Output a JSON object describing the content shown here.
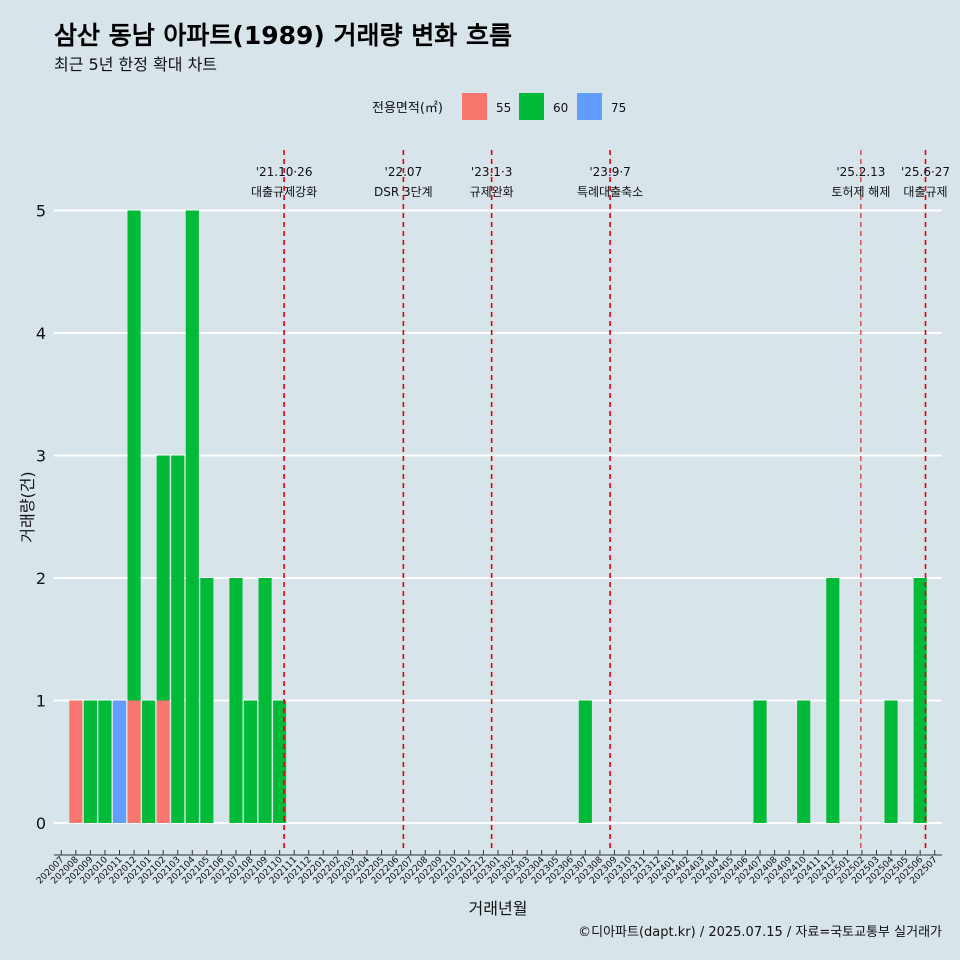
{
  "title": "삼산 동남 아파트(1989) 거래량 변화 흐름",
  "subtitle": "최근 5년 한정 확대 차트",
  "caption": "©디아파트(dapt.kr) / 2025.07.15 / 자료=국토교통부 실거래가",
  "colors": {
    "55": "#F8766D",
    "60": "#00BA38",
    "75": "#619CFF",
    "background": "#d7e4ea",
    "grid": "#ffffff",
    "event_line": "#e0000f"
  },
  "chart_data": {
    "type": "bar",
    "stacked": true,
    "xlabel": "거래년월",
    "ylabel": "거래량(건)",
    "ylim": [
      0,
      5
    ],
    "yticks": [
      0,
      1,
      2,
      3,
      4,
      5
    ],
    "legend": {
      "title": "전용면적(㎡)",
      "position": "top",
      "entries": [
        "55",
        "60",
        "75"
      ]
    },
    "categories": [
      "202007",
      "202008",
      "202009",
      "202010",
      "202011",
      "202012",
      "202101",
      "202102",
      "202103",
      "202104",
      "202105",
      "202106",
      "202107",
      "202108",
      "202109",
      "202110",
      "202111",
      "202112",
      "202201",
      "202202",
      "202203",
      "202204",
      "202205",
      "202206",
      "202207",
      "202208",
      "202209",
      "202210",
      "202211",
      "202212",
      "202301",
      "202302",
      "202303",
      "202304",
      "202305",
      "202306",
      "202307",
      "202308",
      "202309",
      "202310",
      "202311",
      "202312",
      "202401",
      "202402",
      "202403",
      "202404",
      "202405",
      "202406",
      "202407",
      "202408",
      "202409",
      "202410",
      "202411",
      "202412",
      "202501",
      "202502",
      "202503",
      "202504",
      "202505",
      "202506",
      "202507"
    ],
    "bars": [
      {
        "month": "202008",
        "size": "55",
        "value": 1
      },
      {
        "month": "202009",
        "size": "60",
        "value": 1
      },
      {
        "month": "202010",
        "size": "60",
        "value": 1
      },
      {
        "month": "202011",
        "size": "75",
        "value": 1
      },
      {
        "month": "202012",
        "size": "55",
        "value": 1
      },
      {
        "month": "202012",
        "size": "60",
        "value": 4
      },
      {
        "month": "202101",
        "size": "60",
        "value": 1
      },
      {
        "month": "202102",
        "size": "55",
        "value": 1
      },
      {
        "month": "202102",
        "size": "60",
        "value": 2
      },
      {
        "month": "202103",
        "size": "60",
        "value": 3
      },
      {
        "month": "202104",
        "size": "60",
        "value": 5
      },
      {
        "month": "202105",
        "size": "60",
        "value": 2
      },
      {
        "month": "202107",
        "size": "60",
        "value": 2
      },
      {
        "month": "202108",
        "size": "60",
        "value": 1
      },
      {
        "month": "202109",
        "size": "60",
        "value": 2
      },
      {
        "month": "202110",
        "size": "60",
        "value": 1
      },
      {
        "month": "202307",
        "size": "60",
        "value": 1
      },
      {
        "month": "202407",
        "size": "60",
        "value": 1
      },
      {
        "month": "202410",
        "size": "60",
        "value": 1
      },
      {
        "month": "202412",
        "size": "60",
        "value": 2
      },
      {
        "month": "202504",
        "size": "60",
        "value": 1
      },
      {
        "month": "202506",
        "size": "60",
        "value": 2
      }
    ],
    "events": [
      {
        "date": "2021-10-26",
        "label1": "'21.10·26",
        "label2": "대출규제강화",
        "small": false
      },
      {
        "date": "2022-07-01",
        "label1": "'22.07",
        "label2": "DSR 3단계",
        "small": false
      },
      {
        "date": "2023-01-03",
        "label1": "'23.1·3",
        "label2": "규제완화",
        "small": false
      },
      {
        "date": "2023-09-07",
        "label1": "'23.9·7",
        "label2": "특례대출축소",
        "small": false
      },
      {
        "date": "2025-02-13",
        "label1": "'25.2.13",
        "label2": "토허제 해제",
        "small": true
      },
      {
        "date": "2025-06-27",
        "label1": "'25.6·27",
        "label2": "대출규제",
        "small": false
      }
    ]
  }
}
